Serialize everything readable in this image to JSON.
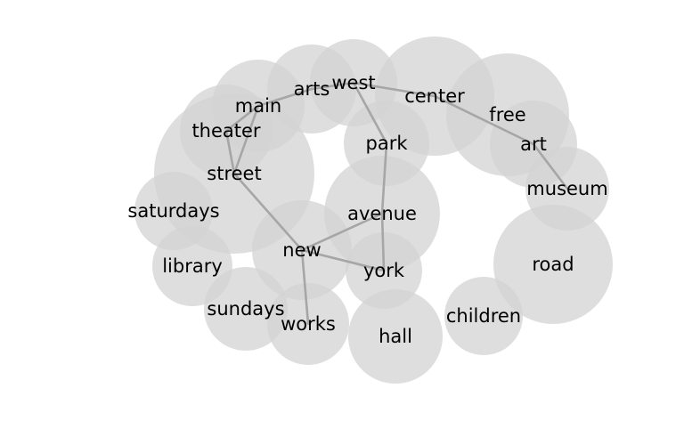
{
  "diagram": {
    "type": "word-cooccurrence-network",
    "bubble_color": "#d3d3d3",
    "edge_color": "#a6a6a6",
    "text_color": "#000000",
    "nodes": [
      {
        "id": "n_street",
        "label": "street"
      },
      {
        "id": "n_center",
        "label": "center"
      },
      {
        "id": "n_free",
        "label": "free"
      },
      {
        "id": "n_avenue",
        "label": "avenue"
      },
      {
        "id": "n_road",
        "label": "road"
      },
      {
        "id": "n_new",
        "label": "new"
      },
      {
        "id": "n_hall",
        "label": "hall"
      },
      {
        "id": "n_arts",
        "label": "arts"
      },
      {
        "id": "n_main",
        "label": "main"
      },
      {
        "id": "n_west",
        "label": "west"
      },
      {
        "id": "n_park",
        "label": "park"
      },
      {
        "id": "n_theater",
        "label": "theater"
      },
      {
        "id": "n_art",
        "label": "art"
      },
      {
        "id": "n_museum",
        "label": "museum"
      },
      {
        "id": "n_library",
        "label": "library"
      },
      {
        "id": "n_york",
        "label": "york"
      },
      {
        "id": "n_saturdays",
        "label": "saturdays"
      },
      {
        "id": "n_sundays",
        "label": "sundays"
      },
      {
        "id": "n_works",
        "label": "works"
      },
      {
        "id": "n_children",
        "label": "children"
      }
    ],
    "edges": [
      {
        "source": "n_arts",
        "target": "n_west"
      },
      {
        "source": "n_west",
        "target": "n_center"
      },
      {
        "source": "n_center",
        "target": "n_art"
      },
      {
        "source": "n_art",
        "target": "n_museum"
      },
      {
        "source": "n_arts",
        "target": "n_main"
      },
      {
        "source": "n_main",
        "target": "n_theater"
      },
      {
        "source": "n_theater",
        "target": "n_street"
      },
      {
        "source": "n_main",
        "target": "n_street"
      },
      {
        "source": "n_street",
        "target": "n_new"
      },
      {
        "source": "n_new",
        "target": "n_avenue"
      },
      {
        "source": "n_new",
        "target": "n_york"
      },
      {
        "source": "n_new",
        "target": "n_works"
      },
      {
        "source": "n_west",
        "target": "n_park"
      },
      {
        "source": "n_park",
        "target": "n_avenue"
      },
      {
        "source": "n_avenue",
        "target": "n_york"
      }
    ]
  }
}
